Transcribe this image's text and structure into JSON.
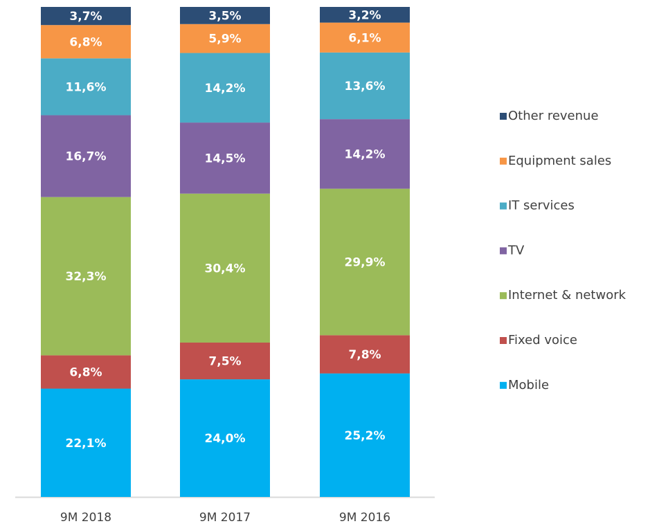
{
  "chart_data": {
    "type": "stacked-bar",
    "categories": [
      "9M 2018",
      "9M 2017",
      "9M 2016"
    ],
    "series": [
      {
        "name": "Mobile",
        "color": "#00b0f0",
        "values": [
          22.1,
          24.0,
          25.2
        ],
        "value_labels": [
          "22,1%",
          "24,0%",
          "25,2%"
        ]
      },
      {
        "name": "Fixed voice",
        "color": "#c0504d",
        "values": [
          6.8,
          7.5,
          7.8
        ],
        "value_labels": [
          "6,8%",
          "7,5%",
          "7,8%"
        ]
      },
      {
        "name": "Internet & network",
        "color": "#9bbb59",
        "values": [
          32.3,
          30.4,
          29.9
        ],
        "value_labels": [
          "32,3%",
          "30,4%",
          "29,9%"
        ]
      },
      {
        "name": "TV",
        "color": "#8064a2",
        "values": [
          16.7,
          14.5,
          14.2
        ],
        "value_labels": [
          "16,7%",
          "14,5%",
          "14,2%"
        ]
      },
      {
        "name": "IT services",
        "color": "#4bacc6",
        "values": [
          11.6,
          14.2,
          13.6
        ],
        "value_labels": [
          "11,6%",
          "14,2%",
          "13,6%"
        ]
      },
      {
        "name": "Equipment sales",
        "color": "#f79646",
        "values": [
          6.8,
          5.9,
          6.1
        ],
        "value_labels": [
          "6,8%",
          "5,9%",
          "6,1%"
        ]
      },
      {
        "name": "Other revenue",
        "color": "#2c4d75",
        "values": [
          3.7,
          3.5,
          3.2
        ],
        "value_labels": [
          "3,7%",
          "3,5%",
          "3,2%"
        ]
      }
    ],
    "legend": "right"
  }
}
